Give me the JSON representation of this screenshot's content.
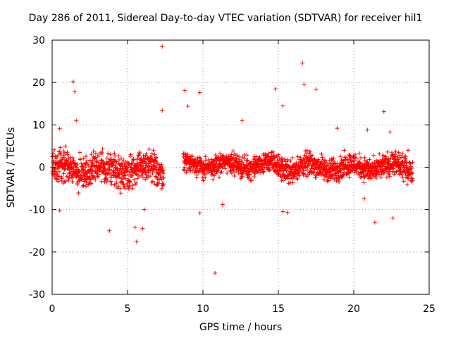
{
  "chart_data": {
    "type": "scatter",
    "title": "Day 286 of 2011, Sidereal Day-to-day VTEC variation (SDTVAR) for receiver hil1",
    "xlabel": "GPS time / hours",
    "ylabel": "SDTVAR / TECUs",
    "xlim": [
      0,
      25
    ],
    "ylim": [
      -30,
      30
    ],
    "xticks": [
      "0",
      "5",
      "10",
      "15",
      "20",
      "25"
    ],
    "yticks": [
      "30",
      "20",
      "10",
      "0",
      "-10",
      "-20",
      "-30"
    ],
    "grid": true,
    "marker": "+",
    "marker_color": "#ff0000",
    "series": [
      {
        "name": "SDTVAR",
        "segments": [
          {
            "t_start": 0.0,
            "t_end": 7.4,
            "min": -6,
            "max": 5
          },
          {
            "t_start": 8.7,
            "t_end": 14.8,
            "min": -3,
            "max": 4
          },
          {
            "t_start": 14.8,
            "t_end": 23.9,
            "min": -4,
            "max": 4
          }
        ],
        "outliers": [
          {
            "x": 7.3,
            "y": 28.5
          },
          {
            "x": 16.6,
            "y": 24.6
          },
          {
            "x": 1.4,
            "y": 20.2
          },
          {
            "x": 1.5,
            "y": 17.8
          },
          {
            "x": 8.8,
            "y": 18.1
          },
          {
            "x": 9.8,
            "y": 17.6
          },
          {
            "x": 14.8,
            "y": 18.5
          },
          {
            "x": 16.7,
            "y": 19.5
          },
          {
            "x": 17.5,
            "y": 18.4
          },
          {
            "x": 7.3,
            "y": 13.4
          },
          {
            "x": 9.0,
            "y": 14.4
          },
          {
            "x": 15.3,
            "y": 14.5
          },
          {
            "x": 22.0,
            "y": 13.1
          },
          {
            "x": 0.5,
            "y": 9.1
          },
          {
            "x": 1.6,
            "y": 11.0
          },
          {
            "x": 12.6,
            "y": 11.0
          },
          {
            "x": 18.9,
            "y": 9.2
          },
          {
            "x": 20.9,
            "y": 8.8
          },
          {
            "x": 22.4,
            "y": 8.3
          },
          {
            "x": 23.6,
            "y": 4.0
          },
          {
            "x": 3.8,
            "y": -15.0
          },
          {
            "x": 5.5,
            "y": -14.2
          },
          {
            "x": 6.0,
            "y": -14.5
          },
          {
            "x": 5.6,
            "y": -17.6
          },
          {
            "x": 10.8,
            "y": -25.0
          },
          {
            "x": 9.8,
            "y": -10.8
          },
          {
            "x": 0.5,
            "y": -10.2
          },
          {
            "x": 15.3,
            "y": -10.5
          },
          {
            "x": 15.6,
            "y": -10.7
          },
          {
            "x": 20.7,
            "y": -7.4
          },
          {
            "x": 21.4,
            "y": -13.0
          },
          {
            "x": 22.6,
            "y": -12.0
          },
          {
            "x": 11.3,
            "y": -8.8
          },
          {
            "x": 6.1,
            "y": -10.0
          },
          {
            "x": 4.5,
            "y": -5.0
          },
          {
            "x": 13.0,
            "y": -2.5
          }
        ]
      }
    ]
  }
}
